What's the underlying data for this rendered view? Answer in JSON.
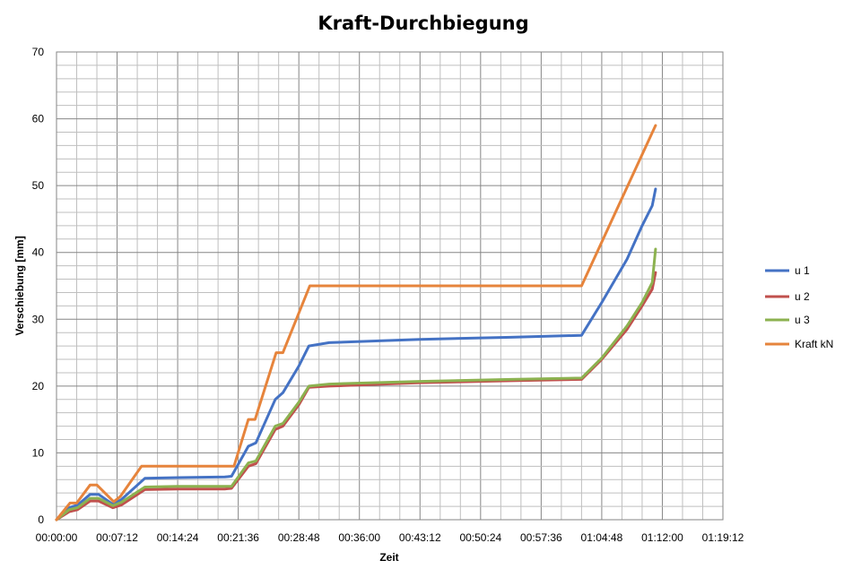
{
  "chart_data": {
    "type": "line",
    "title": "Kraft-Durchbiegung",
    "xlabel": "Zeit",
    "ylabel": "Verschiebung [mm]",
    "xlim": [
      "00:00:00",
      "01:19:12"
    ],
    "ylim": [
      0,
      70
    ],
    "x_ticks": [
      "00:00:00",
      "00:07:12",
      "00:14:24",
      "00:21:36",
      "00:28:48",
      "00:36:00",
      "00:43:12",
      "00:50:24",
      "00:57:36",
      "01:04:48",
      "01:12:00",
      "01:19:12"
    ],
    "y_ticks": [
      "0",
      "10",
      "20",
      "30",
      "40",
      "50",
      "60",
      "70"
    ],
    "grid": true,
    "legend_position": "right",
    "series": [
      {
        "name": "u 1",
        "color": "#4472c4",
        "points": [
          [
            "00:00:00",
            0
          ],
          [
            "00:01:30",
            1.8
          ],
          [
            "00:02:30",
            2.2
          ],
          [
            "00:04:00",
            3.8
          ],
          [
            "00:05:00",
            3.8
          ],
          [
            "00:06:42",
            2.3
          ],
          [
            "00:07:42",
            3.0
          ],
          [
            "00:10:30",
            6.2
          ],
          [
            "00:14:24",
            6.3
          ],
          [
            "00:20:00",
            6.4
          ],
          [
            "00:20:48",
            6.5
          ],
          [
            "00:22:48",
            11.0
          ],
          [
            "00:23:42",
            11.5
          ],
          [
            "00:26:00",
            18.0
          ],
          [
            "00:26:54",
            19.0
          ],
          [
            "00:28:48",
            23.0
          ],
          [
            "00:30:00",
            26.0
          ],
          [
            "00:32:24",
            26.5
          ],
          [
            "00:43:12",
            27.0
          ],
          [
            "00:54:00",
            27.3
          ],
          [
            "01:02:24",
            27.6
          ],
          [
            "01:04:48",
            32.5
          ],
          [
            "01:07:48",
            39.0
          ],
          [
            "01:09:36",
            44.0
          ],
          [
            "01:10:48",
            47.0
          ],
          [
            "01:11:12",
            49.5
          ]
        ]
      },
      {
        "name": "u 2",
        "color": "#c0504d",
        "points": [
          [
            "00:00:00",
            0
          ],
          [
            "00:01:30",
            1.2
          ],
          [
            "00:02:30",
            1.5
          ],
          [
            "00:04:00",
            2.8
          ],
          [
            "00:05:00",
            2.8
          ],
          [
            "00:06:42",
            1.8
          ],
          [
            "00:07:42",
            2.2
          ],
          [
            "00:10:30",
            4.5
          ],
          [
            "00:14:24",
            4.6
          ],
          [
            "00:20:00",
            4.6
          ],
          [
            "00:20:48",
            4.7
          ],
          [
            "00:22:48",
            8.0
          ],
          [
            "00:23:42",
            8.4
          ],
          [
            "00:26:00",
            13.5
          ],
          [
            "00:26:54",
            14.0
          ],
          [
            "00:28:48",
            17.2
          ],
          [
            "00:30:00",
            19.8
          ],
          [
            "00:32:24",
            20.0
          ],
          [
            "00:43:12",
            20.5
          ],
          [
            "00:54:00",
            20.8
          ],
          [
            "01:02:24",
            21.0
          ],
          [
            "01:04:48",
            24.0
          ],
          [
            "01:07:48",
            28.5
          ],
          [
            "01:09:36",
            32.0
          ],
          [
            "01:10:48",
            34.5
          ],
          [
            "01:11:12",
            37.0
          ]
        ]
      },
      {
        "name": "u 3",
        "color": "#8cb250",
        "points": [
          [
            "00:00:00",
            0
          ],
          [
            "00:01:30",
            1.5
          ],
          [
            "00:02:30",
            1.8
          ],
          [
            "00:04:00",
            3.2
          ],
          [
            "00:05:00",
            3.2
          ],
          [
            "00:06:42",
            2.1
          ],
          [
            "00:07:42",
            2.6
          ],
          [
            "00:10:30",
            4.9
          ],
          [
            "00:14:24",
            5.0
          ],
          [
            "00:20:00",
            5.0
          ],
          [
            "00:20:48",
            5.0
          ],
          [
            "00:22:48",
            8.5
          ],
          [
            "00:23:42",
            8.8
          ],
          [
            "00:26:00",
            14.0
          ],
          [
            "00:26:54",
            14.4
          ],
          [
            "00:28:48",
            17.6
          ],
          [
            "00:30:00",
            20.0
          ],
          [
            "00:32:24",
            20.3
          ],
          [
            "00:43:12",
            20.7
          ],
          [
            "00:54:00",
            21.0
          ],
          [
            "01:02:24",
            21.2
          ],
          [
            "01:04:48",
            24.2
          ],
          [
            "01:07:48",
            29.0
          ],
          [
            "01:09:36",
            32.5
          ],
          [
            "01:10:48",
            35.5
          ],
          [
            "01:11:12",
            40.5
          ]
        ]
      },
      {
        "name": "Kraft kN",
        "color": "#e6843c",
        "points": [
          [
            "00:00:00",
            0
          ],
          [
            "00:01:36",
            2.5
          ],
          [
            "00:02:24",
            2.5
          ],
          [
            "00:04:00",
            5.2
          ],
          [
            "00:04:48",
            5.2
          ],
          [
            "00:06:48",
            2.7
          ],
          [
            "00:07:36",
            3.5
          ],
          [
            "00:10:06",
            8.0
          ],
          [
            "00:21:06",
            8.0
          ],
          [
            "00:22:48",
            15.0
          ],
          [
            "00:23:36",
            15.0
          ],
          [
            "00:26:06",
            25.0
          ],
          [
            "00:26:54",
            25.0
          ],
          [
            "00:30:06",
            35.0
          ],
          [
            "01:02:24",
            35.0
          ],
          [
            "01:11:12",
            59.0
          ]
        ]
      }
    ]
  }
}
